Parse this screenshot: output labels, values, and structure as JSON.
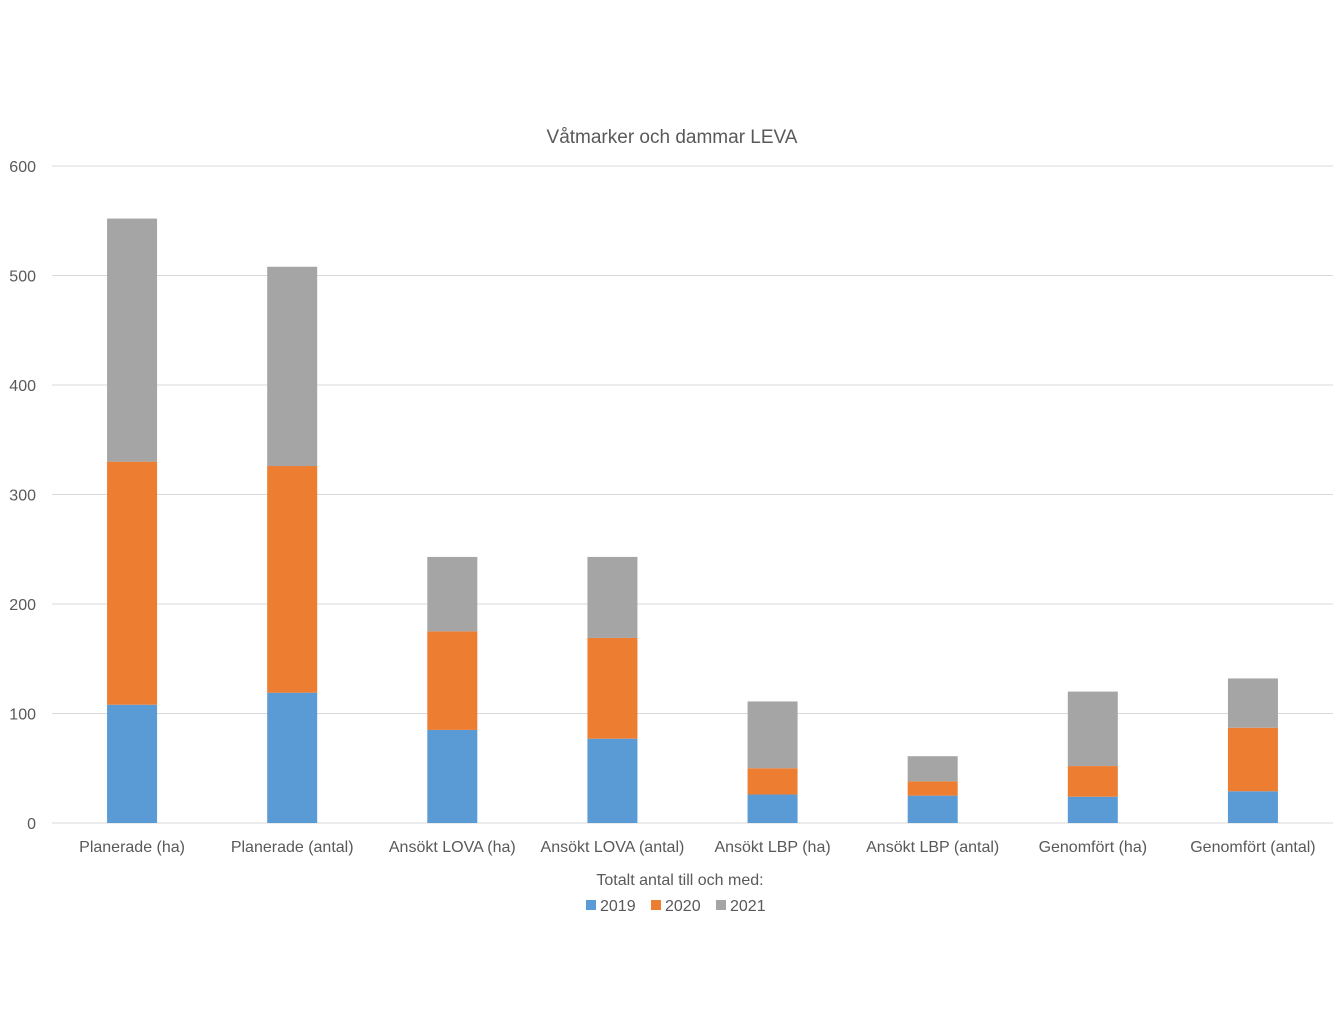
{
  "chart_data": {
    "type": "bar",
    "stacked": true,
    "title": "Våtmarker och dammar LEVA",
    "xlabel": "",
    "ylabel": "",
    "ylim": [
      0,
      600
    ],
    "yticks": [
      0,
      100,
      200,
      300,
      400,
      500,
      600
    ],
    "grid": true,
    "legend_title": "Totalt antal till och med:",
    "legend_position": "bottom",
    "categories": [
      "Planerade (ha)",
      "Planerade (antal)",
      "Ansökt LOVA (ha)",
      "Ansökt LOVA (antal)",
      "Ansökt LBP (ha)",
      "Ansökt LBP (antal)",
      "Genomfört (ha)",
      "Genomfört (antal)"
    ],
    "series": [
      {
        "name": "2019",
        "color": "#5B9BD5",
        "values": [
          108,
          119,
          85,
          77,
          26,
          25,
          24,
          29
        ]
      },
      {
        "name": "2020",
        "color": "#ED7D31",
        "values": [
          222,
          207,
          90,
          92,
          24,
          13,
          28,
          58
        ]
      },
      {
        "name": "2021",
        "color": "#A5A5A5",
        "values": [
          222,
          182,
          68,
          74,
          61,
          23,
          68,
          45
        ]
      }
    ]
  }
}
